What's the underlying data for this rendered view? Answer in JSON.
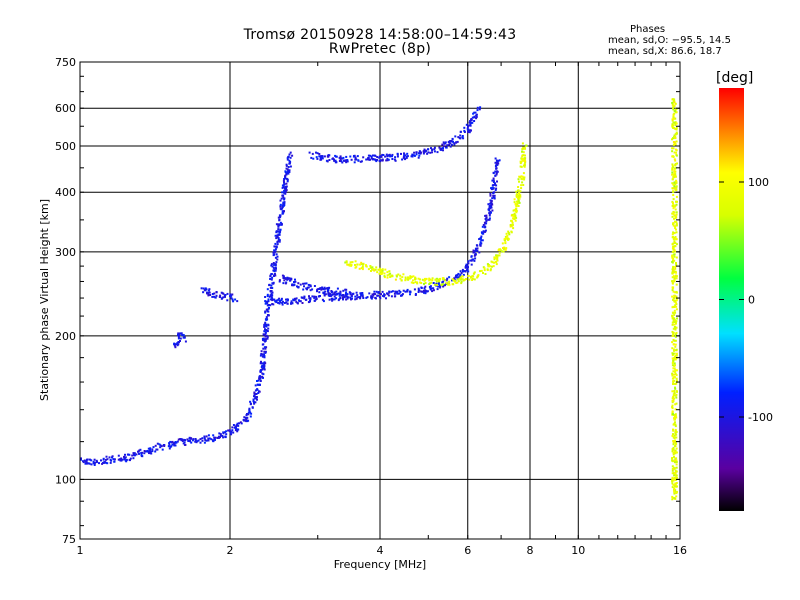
{
  "chart_data": {
    "type": "scatter",
    "title": "Tromsø 20150928 14:58:00–14:59:43",
    "subtitle": "RwPretec (8p)",
    "xlabel": "Frequency [MHz]",
    "ylabel": "Stationary phase Virtual Height [km]",
    "xscale": "log",
    "yscale": "log",
    "xlim": [
      1,
      16
    ],
    "ylim": [
      75,
      750
    ],
    "grid": true,
    "x_ticks": [
      1,
      2,
      4,
      6,
      8,
      10,
      16
    ],
    "x_tick_labels": [
      "1",
      "2",
      "4",
      "6",
      "8",
      "10",
      "16"
    ],
    "y_ticks": [
      75,
      100,
      200,
      300,
      400,
      500,
      600,
      750
    ],
    "y_tick_labels": [
      "75",
      "100",
      "200",
      "300",
      "400",
      "500",
      "600",
      "750"
    ],
    "phases_box": {
      "heading": "Phases",
      "line_o": "mean, sd,O: −95.5, 14.5",
      "line_x": "mean, sd,X: 86.6, 18.7"
    },
    "colorbar": {
      "unit": "[deg]",
      "range": [
        -180,
        180
      ],
      "ticks": [
        100,
        0,
        -100
      ],
      "tick_labels": [
        "100",
        "0",
        "-100"
      ]
    },
    "traces": [
      {
        "mode": "O",
        "phase_mean": -95.5,
        "phase_sd": 14.5,
        "x": [
          1.0,
          1.05,
          1.15,
          1.25,
          1.35,
          1.45,
          1.55,
          1.65,
          1.75,
          1.85,
          1.95,
          2.05,
          2.15,
          2.25,
          2.32,
          2.36,
          2.38
        ],
        "y": [
          112,
          108,
          110,
          111,
          114,
          117,
          119,
          120,
          121,
          122,
          124,
          128,
          134,
          148,
          170,
          200,
          240
        ]
      },
      {
        "mode": "O",
        "phase_mean": -95.5,
        "phase_sd": 14.5,
        "x": [
          2.4,
          2.45,
          2.5,
          2.55,
          2.6,
          2.65
        ],
        "y": [
          240,
          280,
          330,
          380,
          430,
          480
        ]
      },
      {
        "mode": "O",
        "phase_mean": -95.5,
        "phase_sd": 14.5,
        "x": [
          1.55,
          1.58,
          1.6,
          1.62
        ],
        "y": [
          190,
          198,
          202,
          196
        ]
      },
      {
        "mode": "O",
        "phase_mean": -95.5,
        "phase_sd": 14.5,
        "x": [
          1.75,
          1.85,
          1.95,
          2.05
        ],
        "y": [
          250,
          245,
          242,
          240
        ]
      },
      {
        "mode": "O",
        "phase_mean": -95.5,
        "phase_sd": 14.5,
        "x": [
          2.4,
          2.6,
          2.8,
          3.0,
          3.2,
          3.5,
          3.8,
          4.2,
          4.6,
          5.0,
          5.4,
          5.8,
          6.1,
          6.4,
          6.7,
          6.9
        ],
        "y": [
          235,
          236,
          238,
          240,
          241,
          242,
          243,
          244,
          246,
          250,
          258,
          268,
          285,
          320,
          380,
          470
        ]
      },
      {
        "mode": "O",
        "phase_mean": -95.5,
        "phase_sd": 14.5,
        "x": [
          2.9,
          3.1,
          3.3,
          3.6,
          4.0,
          4.4,
          4.8,
          5.2,
          5.5,
          5.8,
          6.0,
          6.3
        ],
        "y": [
          480,
          472,
          468,
          470,
          472,
          474,
          480,
          492,
          505,
          520,
          540,
          600
        ]
      },
      {
        "mode": "O",
        "phase_mean": -95.5,
        "phase_sd": 14.5,
        "x": [
          2.5,
          2.7,
          2.9,
          3.2,
          3.5
        ],
        "y": [
          265,
          258,
          252,
          248,
          245
        ]
      },
      {
        "mode": "X",
        "phase_mean": 86.6,
        "phase_sd": 18.7,
        "x": [
          3.4,
          3.7,
          4.0,
          4.3,
          4.7,
          5.1,
          5.5,
          5.8,
          6.1,
          6.4,
          6.7,
          7.0,
          7.3,
          7.5,
          7.7,
          7.8
        ],
        "y": [
          285,
          280,
          272,
          266,
          262,
          260,
          260,
          262,
          266,
          272,
          282,
          300,
          330,
          370,
          430,
          500
        ]
      },
      {
        "mode": "X",
        "phase_mean": 86.6,
        "phase_sd": 18.7,
        "x": [
          15.6,
          15.6,
          15.6,
          15.6,
          15.6,
          15.6
        ],
        "y": [
          90,
          150,
          220,
          320,
          450,
          620
        ]
      }
    ]
  }
}
